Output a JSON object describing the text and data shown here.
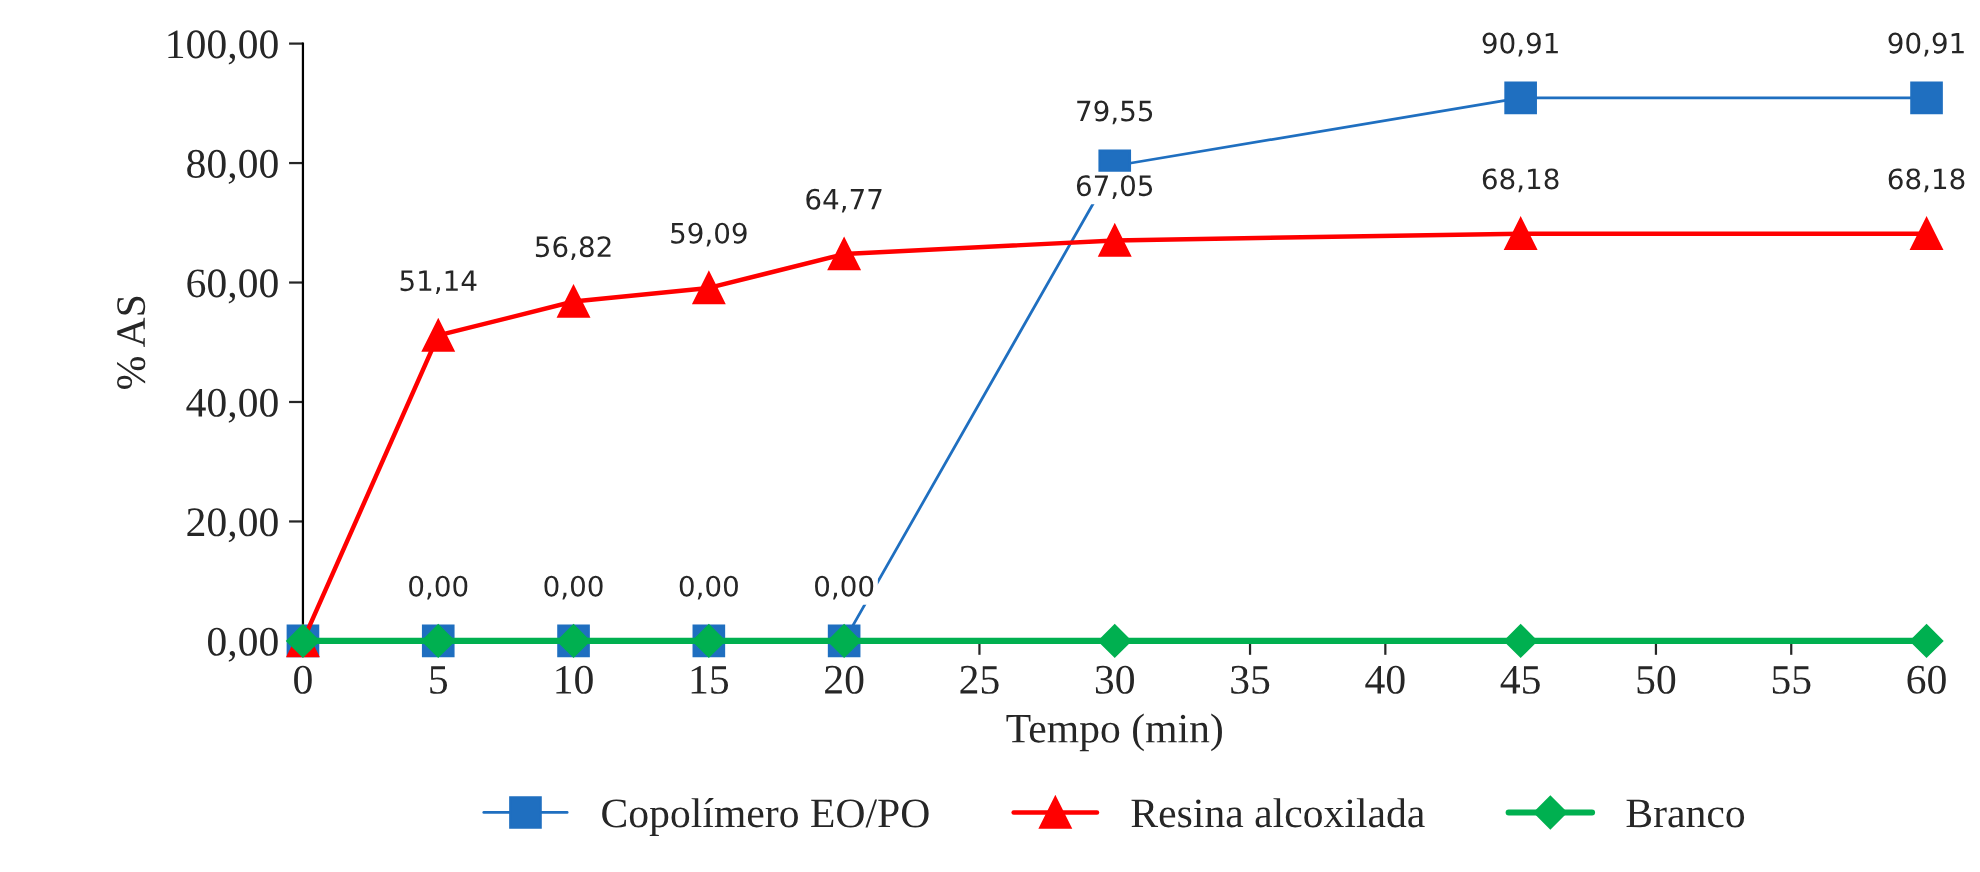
{
  "chart_data": {
    "type": "line",
    "xlabel": "Tempo (min)",
    "ylabel": "% AS",
    "xlim": [
      0,
      60
    ],
    "xticks": [
      0,
      5,
      10,
      15,
      20,
      25,
      30,
      35,
      40,
      45,
      50,
      55,
      60
    ],
    "ylim": [
      0,
      100
    ],
    "yticks": [
      {
        "value": 0,
        "label": "0,00"
      },
      {
        "value": 20,
        "label": "20,00"
      },
      {
        "value": 40,
        "label": "40,00"
      },
      {
        "value": 60,
        "label": "60,00"
      },
      {
        "value": 80,
        "label": "80,00"
      },
      {
        "value": 100,
        "label": "100,00"
      }
    ],
    "grid": false,
    "legend": "bottom",
    "series": [
      {
        "name": "Copolímero EO/PO",
        "color": "#1f6fc0",
        "marker": "square",
        "x": [
          0,
          5,
          10,
          15,
          20,
          30,
          45,
          60
        ],
        "values": [
          0,
          0,
          0,
          0,
          0,
          79.55,
          90.91,
          90.91
        ],
        "value_labels": [
          null,
          "0,00",
          "0,00",
          "0,00",
          "0,00",
          "79,55",
          "90,91",
          "90,91"
        ]
      },
      {
        "name": "Resina alcoxilada",
        "color": "#ff0000",
        "marker": "triangle",
        "x": [
          0,
          5,
          10,
          15,
          20,
          30,
          45,
          60
        ],
        "values": [
          0,
          51.14,
          56.82,
          59.09,
          64.77,
          67.05,
          68.18,
          68.18
        ],
        "value_labels": [
          null,
          "51,14",
          "56,82",
          "59,09",
          "64,77",
          "67,05",
          "68,18",
          "68,18"
        ]
      },
      {
        "name": "Branco",
        "color": "#00b050",
        "marker": "diamond",
        "x": [
          0,
          5,
          10,
          15,
          20,
          30,
          45,
          60
        ],
        "values": [
          0,
          0,
          0,
          0,
          0,
          0,
          0,
          0
        ]
      }
    ]
  }
}
